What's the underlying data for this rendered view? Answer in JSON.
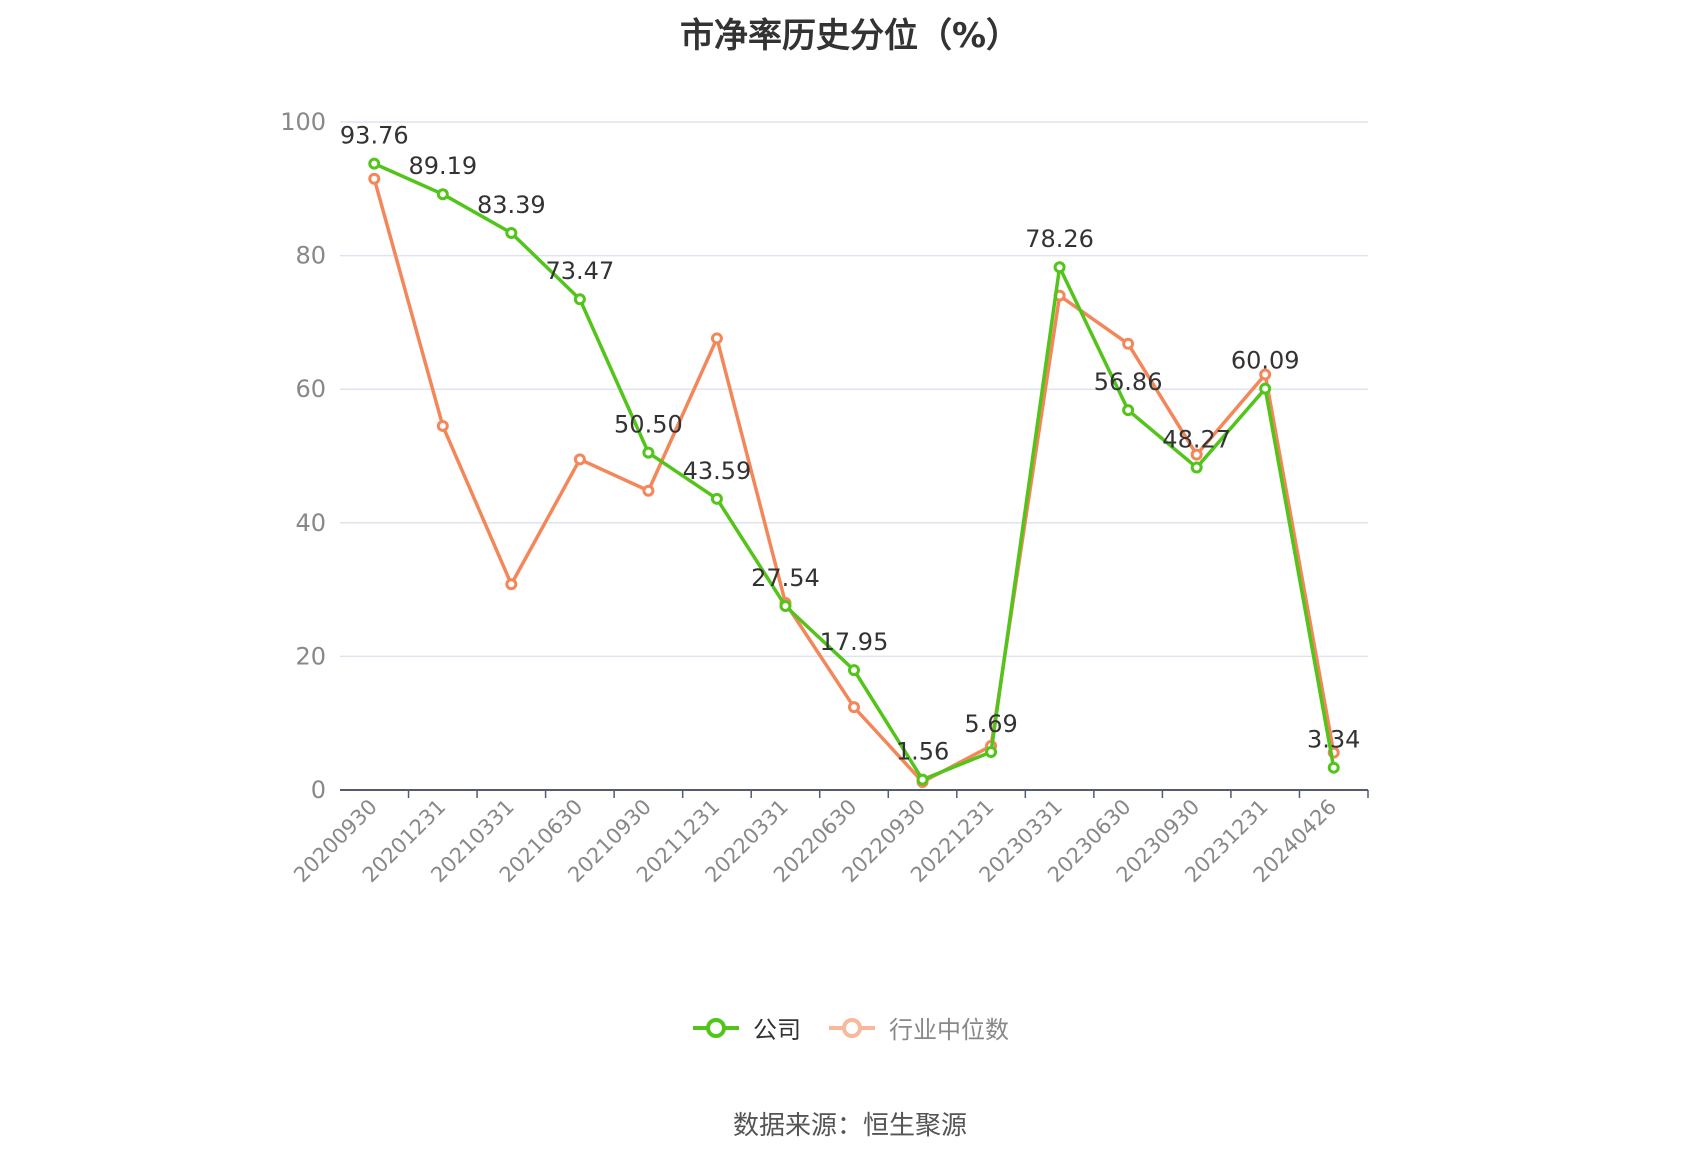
{
  "title": "市净率历史分位（%）",
  "source": "数据来源：恒生聚源",
  "chart_data": {
    "type": "line",
    "title": "市净率历史分位（%）",
    "ylim": [
      0,
      100
    ],
    "yticks": [
      0,
      20,
      40,
      60,
      80,
      100
    ],
    "grid": true,
    "legend_position": "bottom",
    "categories": [
      "20200930",
      "20201231",
      "20210331",
      "20210630",
      "20210930",
      "20211231",
      "20220331",
      "20220630",
      "20220930",
      "20221231",
      "20230331",
      "20230630",
      "20230930",
      "20231231",
      "20240426"
    ],
    "series": [
      {
        "name": "公司",
        "color": "#52c41a",
        "values": [
          93.76,
          89.19,
          83.39,
          73.47,
          50.5,
          43.59,
          27.54,
          17.95,
          1.56,
          5.69,
          78.26,
          56.86,
          48.27,
          60.09,
          3.34
        ],
        "labels": [
          "93.76",
          "89.19",
          "83.39",
          "73.47",
          "50.50",
          "43.59",
          "27.54",
          "17.95",
          "1.56",
          "5.69",
          "78.26",
          "56.86",
          "48.27",
          "60.09",
          "3.34"
        ]
      },
      {
        "name": "行业中位数",
        "color": "#f4875a",
        "values": [
          91.5,
          54.5,
          30.8,
          49.5,
          44.8,
          67.6,
          28.0,
          12.4,
          1.2,
          6.6,
          74.0,
          66.8,
          50.2,
          62.2,
          5.6
        ]
      }
    ]
  }
}
